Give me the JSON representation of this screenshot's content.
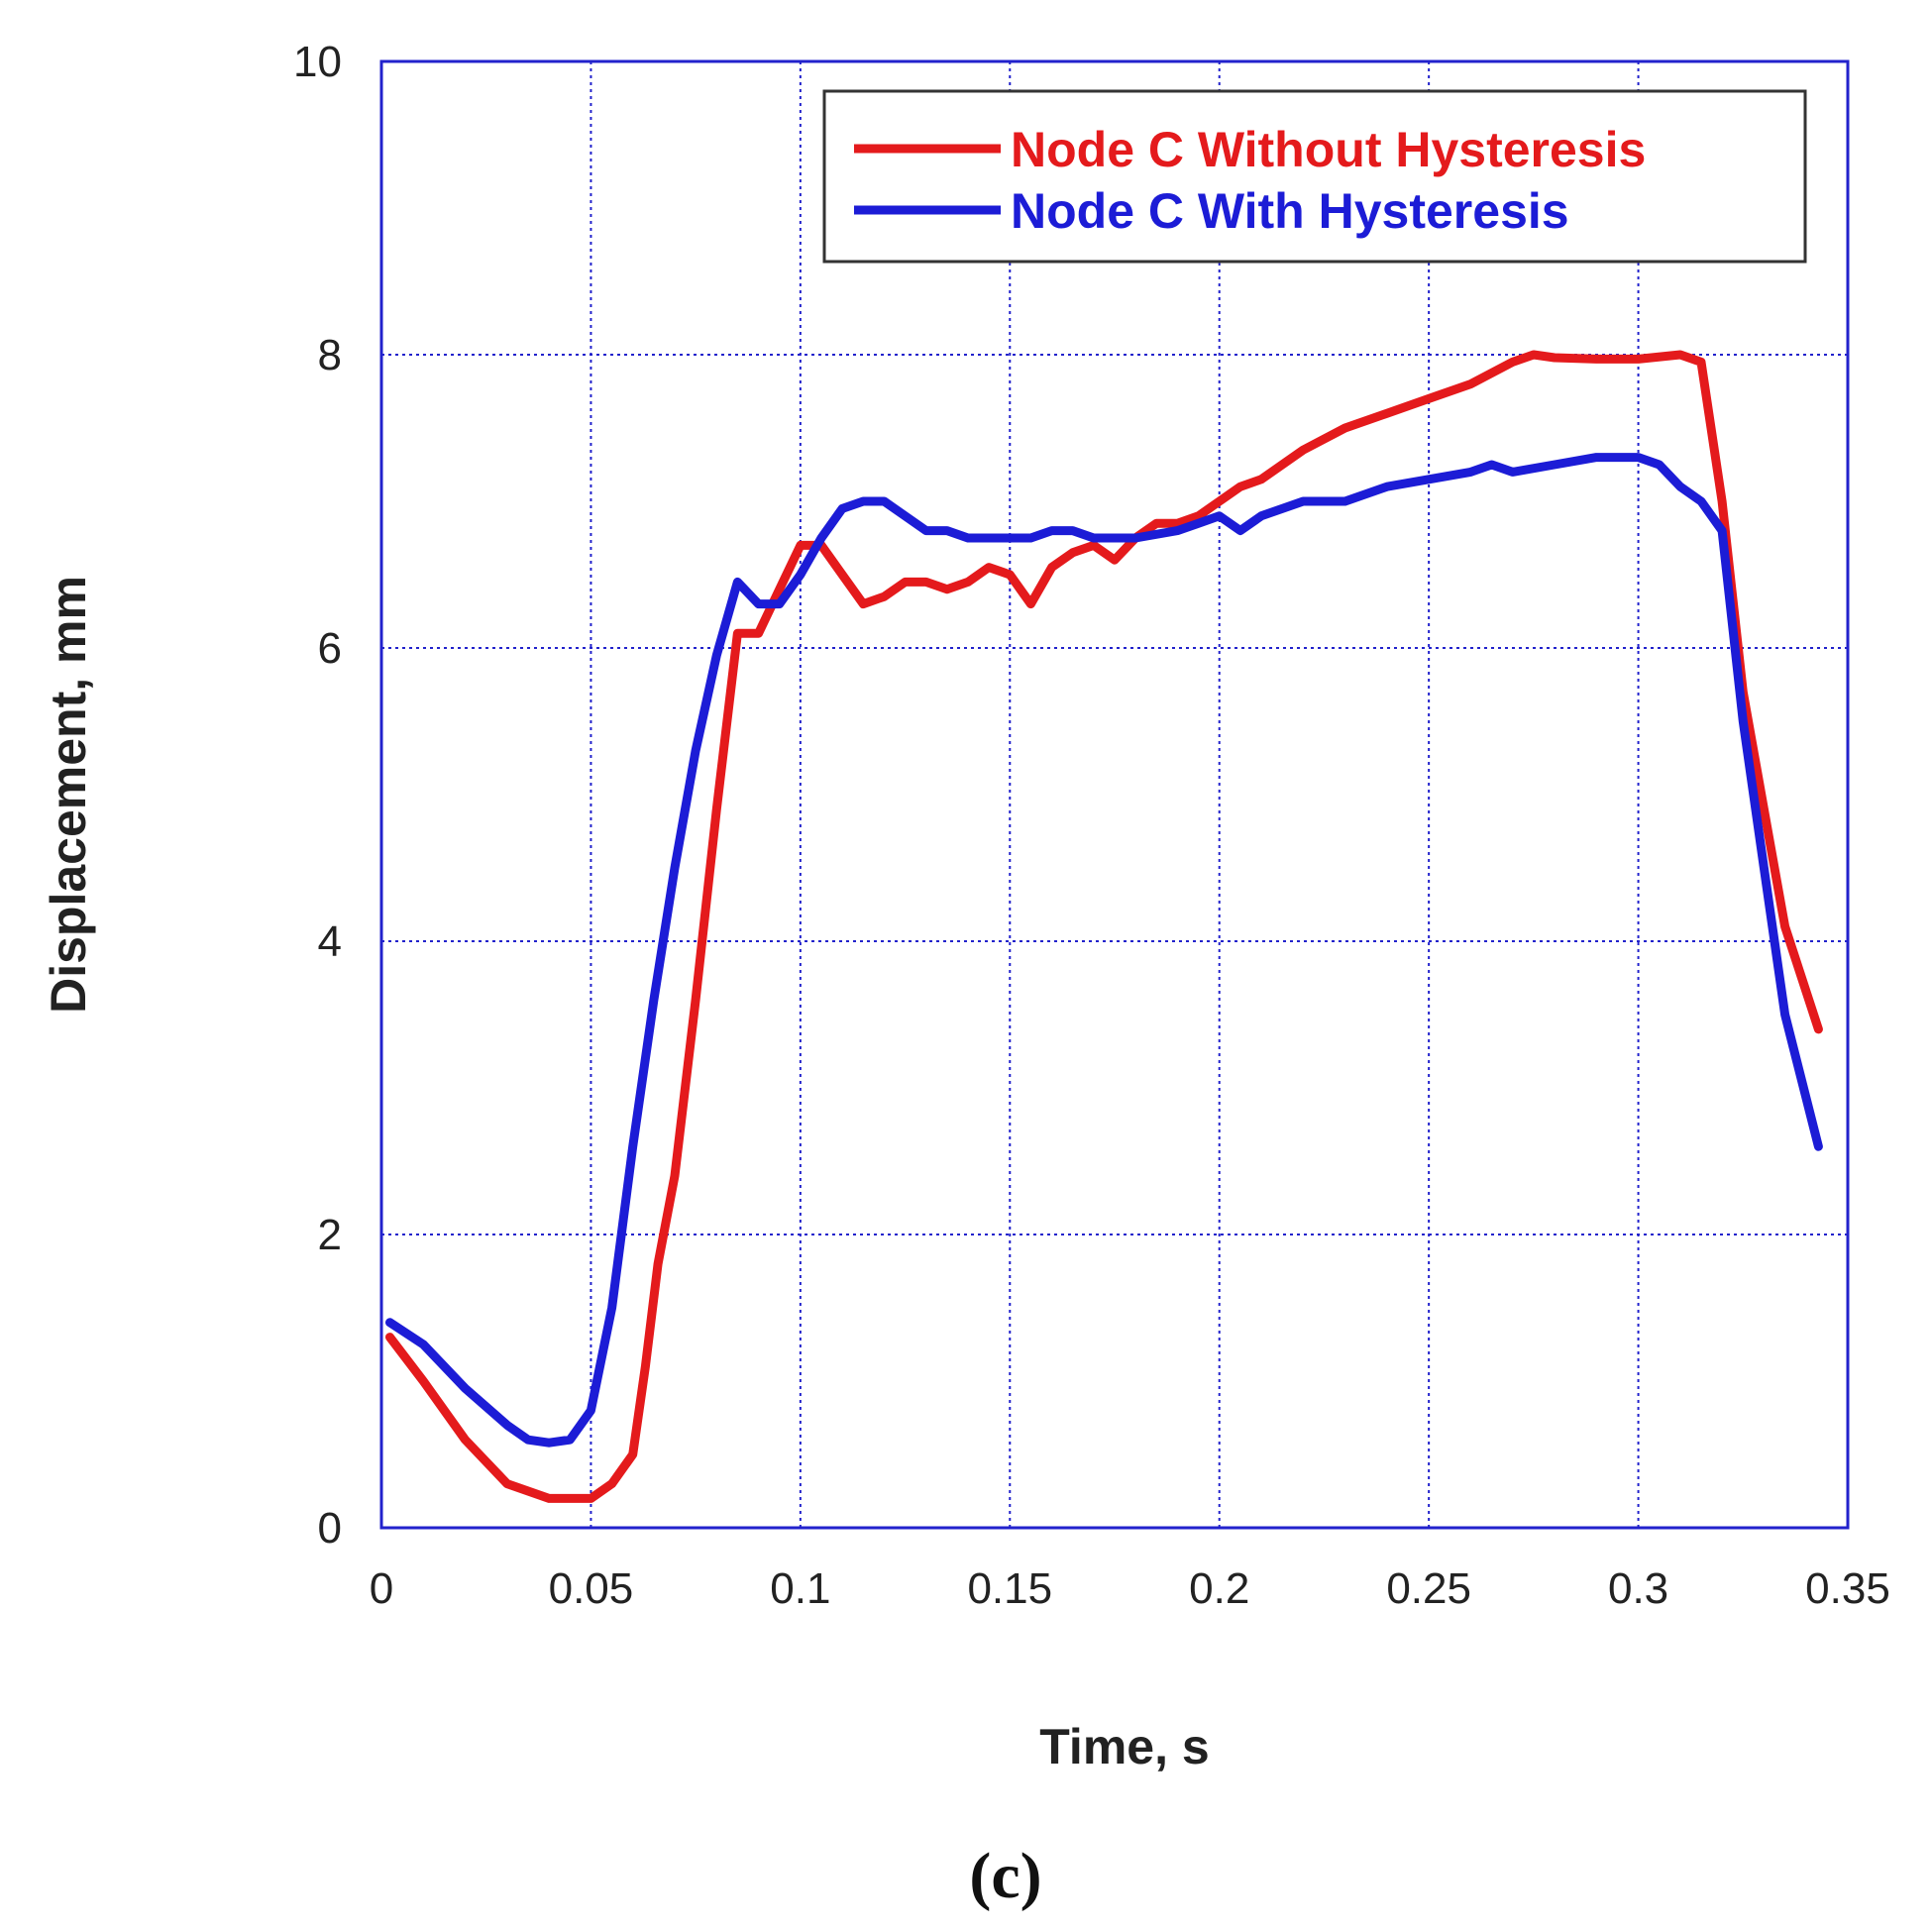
{
  "chart_data": {
    "type": "line",
    "title": "",
    "xlabel": "Time, s",
    "ylabel": "Displacement, mm",
    "xlim": [
      0,
      0.35
    ],
    "ylim": [
      0,
      10
    ],
    "xticks": [
      0,
      0.05,
      0.1,
      0.15,
      0.2,
      0.25,
      0.3,
      0.35
    ],
    "xtick_labels": [
      "0",
      "0.05",
      "0.1",
      "0.15",
      "0.2",
      "0.25",
      "0.3",
      "0.35"
    ],
    "yticks": [
      0,
      2,
      4,
      6,
      8,
      10
    ],
    "ytick_labels": [
      "0",
      "2",
      "4",
      "6",
      "8",
      "10"
    ],
    "grid": true,
    "legend_position": "top-right",
    "caption": "(c)",
    "series": [
      {
        "name": "Node C Without Hysteresis",
        "color": "#e41a1c",
        "x": [
          0.002,
          0.01,
          0.02,
          0.03,
          0.04,
          0.045,
          0.05,
          0.055,
          0.06,
          0.063,
          0.066,
          0.07,
          0.075,
          0.08,
          0.085,
          0.09,
          0.095,
          0.1,
          0.105,
          0.11,
          0.115,
          0.12,
          0.125,
          0.13,
          0.135,
          0.14,
          0.145,
          0.15,
          0.155,
          0.16,
          0.165,
          0.17,
          0.175,
          0.18,
          0.185,
          0.19,
          0.195,
          0.2,
          0.205,
          0.21,
          0.22,
          0.23,
          0.24,
          0.25,
          0.26,
          0.27,
          0.275,
          0.28,
          0.29,
          0.3,
          0.31,
          0.315,
          0.32,
          0.325,
          0.33,
          0.335,
          0.343
        ],
        "y": [
          1.3,
          1.0,
          0.6,
          0.3,
          0.2,
          0.2,
          0.2,
          0.3,
          0.5,
          1.1,
          1.8,
          2.4,
          3.6,
          4.9,
          6.1,
          6.1,
          6.4,
          6.7,
          6.7,
          6.5,
          6.3,
          6.35,
          6.45,
          6.45,
          6.4,
          6.45,
          6.55,
          6.5,
          6.3,
          6.55,
          6.65,
          6.7,
          6.6,
          6.75,
          6.85,
          6.85,
          6.9,
          7.0,
          7.1,
          7.15,
          7.35,
          7.5,
          7.6,
          7.7,
          7.8,
          7.95,
          8.0,
          7.98,
          7.97,
          7.97,
          8.0,
          7.95,
          7.0,
          5.7,
          4.9,
          4.1,
          3.4
        ]
      },
      {
        "name": "Node C With Hysteresis",
        "color": "#1c1cd6",
        "x": [
          0.002,
          0.01,
          0.02,
          0.03,
          0.035,
          0.04,
          0.045,
          0.05,
          0.055,
          0.06,
          0.065,
          0.07,
          0.075,
          0.08,
          0.085,
          0.09,
          0.095,
          0.1,
          0.105,
          0.11,
          0.115,
          0.12,
          0.125,
          0.13,
          0.135,
          0.14,
          0.145,
          0.15,
          0.155,
          0.16,
          0.165,
          0.17,
          0.175,
          0.18,
          0.19,
          0.195,
          0.2,
          0.205,
          0.21,
          0.22,
          0.23,
          0.24,
          0.25,
          0.26,
          0.265,
          0.27,
          0.28,
          0.29,
          0.3,
          0.305,
          0.31,
          0.315,
          0.32,
          0.325,
          0.33,
          0.335,
          0.343
        ],
        "y": [
          1.4,
          1.25,
          0.95,
          0.7,
          0.6,
          0.58,
          0.6,
          0.8,
          1.5,
          2.6,
          3.6,
          4.5,
          5.3,
          5.95,
          6.45,
          6.3,
          6.3,
          6.5,
          6.75,
          6.95,
          7.0,
          7.0,
          6.9,
          6.8,
          6.8,
          6.75,
          6.75,
          6.75,
          6.75,
          6.8,
          6.8,
          6.75,
          6.75,
          6.75,
          6.8,
          6.85,
          6.9,
          6.8,
          6.9,
          7.0,
          7.0,
          7.1,
          7.15,
          7.2,
          7.25,
          7.2,
          7.25,
          7.3,
          7.3,
          7.25,
          7.1,
          7.0,
          6.8,
          5.5,
          4.5,
          3.5,
          2.6
        ]
      }
    ]
  }
}
